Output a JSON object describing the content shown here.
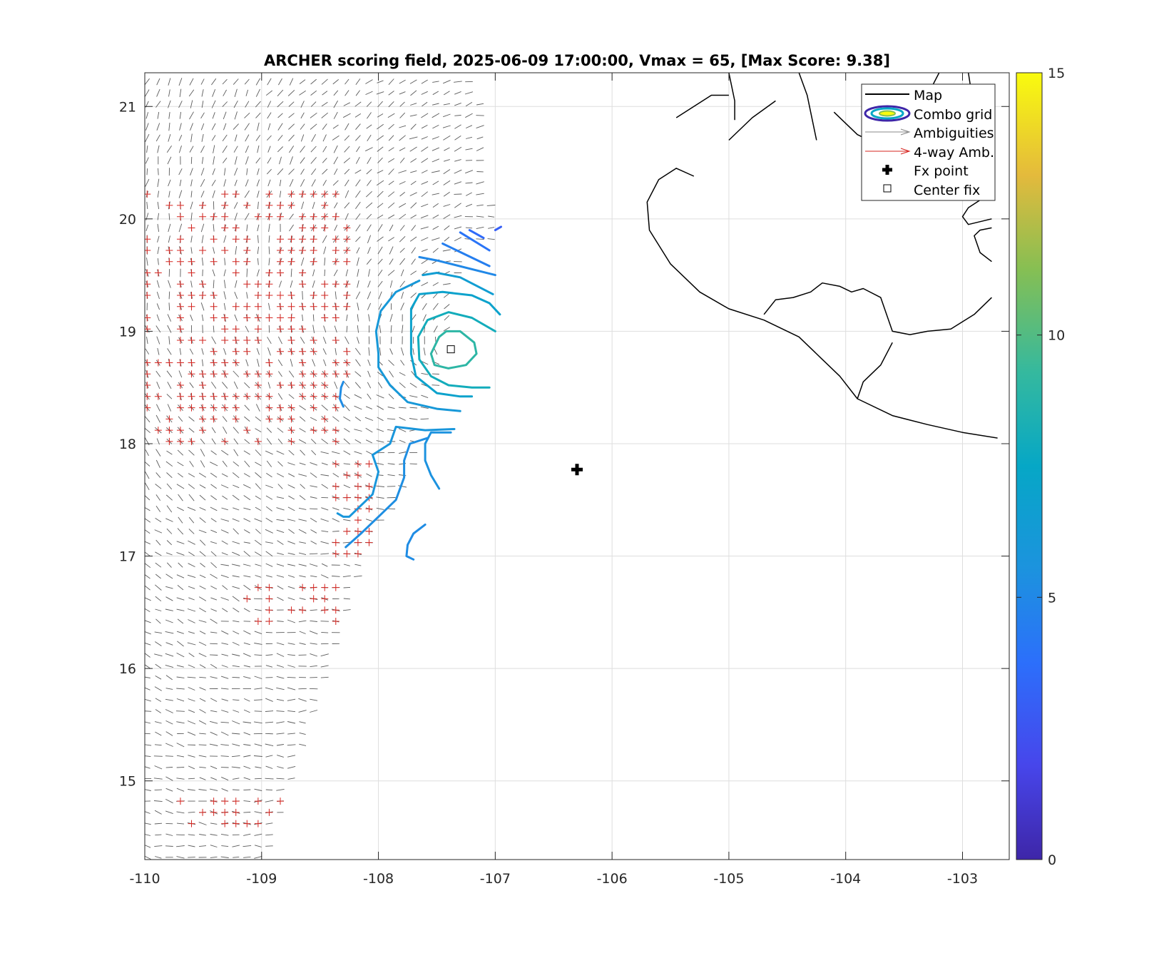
{
  "chart_data": {
    "type": "contour",
    "title": "ARCHER scoring field, 2025-06-09 17:00:00, Vmax = 65, [Max Score: 9.38]",
    "xlabel": "",
    "ylabel": "",
    "xlim": [
      -110,
      -102.6
    ],
    "ylim": [
      14.3,
      21.3
    ],
    "x_ticks": [
      -110,
      -109,
      -108,
      -107,
      -106,
      -105,
      -104,
      -103
    ],
    "x_tick_labels": [
      "-110",
      "-109",
      "-108",
      "-107",
      "-106",
      "-105",
      "-104",
      "-103"
    ],
    "y_ticks": [
      15,
      16,
      17,
      18,
      19,
      20,
      21
    ],
    "y_tick_labels": [
      "15",
      "16",
      "17",
      "18",
      "19",
      "20",
      "21"
    ],
    "grid": true,
    "colorbar": {
      "min": 0,
      "max": 15,
      "ticks": [
        0,
        5,
        10,
        15
      ],
      "tick_labels": [
        "0",
        "5",
        "10",
        "15"
      ],
      "colormap": "parula"
    },
    "legend": {
      "placement": "top-right",
      "entries": [
        "Map",
        "Combo grid",
        "Ambiguities",
        "4-way Amb.",
        "Fx point",
        "Center fix"
      ]
    },
    "points": {
      "fx_point": {
        "lon": -106.3,
        "lat": 17.77
      },
      "center_fix": {
        "lon": -107.38,
        "lat": 18.84
      }
    },
    "contours": [
      {
        "level": 9.0,
        "coords": [
          [
            -107.48,
            18.95
          ],
          [
            -107.42,
            19.0
          ],
          [
            -107.3,
            19.0
          ],
          [
            -107.18,
            18.9
          ],
          [
            -107.16,
            18.8
          ],
          [
            -107.25,
            18.7
          ],
          [
            -107.4,
            18.67
          ],
          [
            -107.52,
            18.7
          ],
          [
            -107.55,
            18.8
          ],
          [
            -107.48,
            18.95
          ]
        ]
      },
      {
        "level": 8.0,
        "coords": [
          [
            -107.0,
            19.0
          ],
          [
            -107.2,
            19.12
          ],
          [
            -107.4,
            19.17
          ],
          [
            -107.58,
            19.1
          ],
          [
            -107.66,
            18.95
          ],
          [
            -107.65,
            18.75
          ],
          [
            -107.55,
            18.6
          ],
          [
            -107.4,
            18.52
          ],
          [
            -107.2,
            18.5
          ],
          [
            -107.05,
            18.5
          ]
        ]
      },
      {
        "level": 7.0,
        "coords": [
          [
            -106.96,
            19.15
          ],
          [
            -107.05,
            19.25
          ],
          [
            -107.2,
            19.32
          ],
          [
            -107.45,
            19.35
          ],
          [
            -107.65,
            19.33
          ],
          [
            -107.72,
            19.2
          ],
          [
            -107.72,
            19.0
          ],
          [
            -107.72,
            18.8
          ],
          [
            -107.68,
            18.6
          ],
          [
            -107.5,
            18.45
          ],
          [
            -107.3,
            18.42
          ],
          [
            -107.2,
            18.42
          ]
        ]
      },
      {
        "level": 6.5,
        "coords": [
          [
            -107.02,
            19.33
          ],
          [
            -107.3,
            19.48
          ],
          [
            -107.5,
            19.52
          ],
          [
            -107.62,
            19.5
          ]
        ]
      },
      {
        "level": 6.0,
        "coords": [
          [
            -107.65,
            19.45
          ],
          [
            -107.85,
            19.35
          ],
          [
            -107.98,
            19.18
          ],
          [
            -108.02,
            19.0
          ],
          [
            -108.0,
            18.8
          ],
          [
            -108.0,
            18.68
          ],
          [
            -107.9,
            18.52
          ],
          [
            -107.75,
            18.37
          ],
          [
            -107.5,
            18.31
          ],
          [
            -107.3,
            18.29
          ]
        ]
      },
      {
        "level": 5.8,
        "coords": [
          [
            -107.35,
            18.13
          ],
          [
            -107.6,
            18.12
          ],
          [
            -107.85,
            18.15
          ],
          [
            -107.9,
            18.0
          ],
          [
            -108.05,
            17.9
          ],
          [
            -108.0,
            17.75
          ],
          [
            -108.05,
            17.55
          ],
          [
            -108.15,
            17.45
          ],
          [
            -108.25,
            17.35
          ],
          [
            -108.3,
            17.35
          ],
          [
            -108.35,
            17.38
          ]
        ]
      },
      {
        "level": 5.5,
        "coords": [
          [
            -107.38,
            18.1
          ],
          [
            -107.55,
            18.1
          ],
          [
            -107.6,
            18.0
          ],
          [
            -107.6,
            17.85
          ],
          [
            -107.55,
            17.72
          ],
          [
            -107.48,
            17.6
          ]
        ]
      },
      {
        "level": 5.3,
        "coords": [
          [
            -107.58,
            18.05
          ],
          [
            -107.73,
            18.0
          ],
          [
            -107.78,
            17.85
          ],
          [
            -107.78,
            17.7
          ],
          [
            -107.85,
            17.5
          ],
          [
            -108.0,
            17.35
          ],
          [
            -108.15,
            17.2
          ],
          [
            -108.28,
            17.08
          ]
        ]
      },
      {
        "level": 5.2,
        "coords": [
          [
            -107.6,
            17.28
          ],
          [
            -107.7,
            17.2
          ],
          [
            -107.75,
            17.1
          ],
          [
            -107.76,
            17.0
          ],
          [
            -107.7,
            16.97
          ]
        ]
      },
      {
        "level": 5.0,
        "coords": [
          [
            -107.0,
            19.5
          ],
          [
            -107.5,
            19.63
          ],
          [
            -107.65,
            19.66
          ]
        ]
      },
      {
        "level": 4.5,
        "coords": [
          [
            -107.05,
            19.58
          ],
          [
            -107.45,
            19.78
          ]
        ]
      },
      {
        "level": 4.0,
        "coords": [
          [
            -107.05,
            19.72
          ],
          [
            -107.3,
            19.88
          ]
        ]
      },
      {
        "level": 3.5,
        "coords": [
          [
            -107.1,
            19.83
          ],
          [
            -107.22,
            19.9
          ]
        ]
      },
      {
        "level": 3.0,
        "coords": [
          [
            -107.0,
            19.9
          ],
          [
            -106.95,
            19.93
          ]
        ]
      },
      {
        "level": 5.2,
        "coords": [
          [
            -108.3,
            18.33
          ],
          [
            -108.33,
            18.4
          ],
          [
            -108.32,
            18.5
          ],
          [
            -108.3,
            18.55
          ]
        ]
      }
    ],
    "coastline": [
      [
        [
          -103.2,
          21.3
        ],
        [
          -103.3,
          21.1
        ],
        [
          -103.45,
          20.95
        ],
        [
          -103.55,
          20.85
        ],
        [
          -103.7,
          20.65
        ],
        [
          -103.9,
          20.75
        ],
        [
          -104.0,
          20.85
        ],
        [
          -104.1,
          20.95
        ]
      ],
      [
        [
          -102.95,
          21.3
        ],
        [
          -102.92,
          21.1
        ],
        [
          -102.8,
          20.85
        ],
        [
          -102.75,
          20.6
        ]
      ],
      [
        [
          -105.0,
          21.3
        ],
        [
          -104.95,
          21.05
        ],
        [
          -104.95,
          20.88
        ]
      ],
      [
        [
          -104.4,
          21.3
        ],
        [
          -104.33,
          21.1
        ],
        [
          -104.3,
          20.95
        ],
        [
          -104.25,
          20.7
        ]
      ],
      [
        [
          -105.0,
          20.7
        ],
        [
          -104.8,
          20.9
        ],
        [
          -104.6,
          21.05
        ]
      ],
      [
        [
          -105.45,
          20.9
        ],
        [
          -105.3,
          21.0
        ],
        [
          -105.15,
          21.1
        ],
        [
          -105.0,
          21.1
        ]
      ],
      [
        [
          -105.3,
          20.38
        ],
        [
          -105.45,
          20.45
        ],
        [
          -105.6,
          20.35
        ],
        [
          -105.7,
          20.15
        ],
        [
          -105.68,
          19.9
        ],
        [
          -105.5,
          19.6
        ],
        [
          -105.25,
          19.35
        ],
        [
          -105.0,
          19.2
        ],
        [
          -104.7,
          19.1
        ],
        [
          -104.4,
          18.95
        ],
        [
          -104.2,
          18.75
        ],
        [
          -104.05,
          18.6
        ],
        [
          -103.9,
          18.4
        ],
        [
          -103.6,
          18.25
        ],
        [
          -103.3,
          18.17
        ],
        [
          -103.0,
          18.1
        ],
        [
          -102.7,
          18.05
        ]
      ],
      [
        [
          -104.7,
          19.15
        ],
        [
          -104.6,
          19.28
        ],
        [
          -104.45,
          19.3
        ],
        [
          -104.3,
          19.35
        ],
        [
          -104.2,
          19.43
        ],
        [
          -104.05,
          19.4
        ],
        [
          -103.95,
          19.35
        ],
        [
          -103.85,
          19.38
        ],
        [
          -103.7,
          19.3
        ],
        [
          -103.65,
          19.15
        ],
        [
          -103.6,
          19.0
        ],
        [
          -103.45,
          18.97
        ],
        [
          -103.3,
          19.0
        ],
        [
          -103.1,
          19.02
        ],
        [
          -102.9,
          19.15
        ],
        [
          -102.75,
          19.3
        ]
      ],
      [
        [
          -103.9,
          18.4
        ],
        [
          -103.85,
          18.55
        ],
        [
          -103.7,
          18.7
        ],
        [
          -103.6,
          18.9
        ]
      ],
      [
        [
          -102.75,
          20.0
        ],
        [
          -102.95,
          19.95
        ],
        [
          -103.0,
          20.02
        ],
        [
          -102.95,
          20.1
        ],
        [
          -102.8,
          20.2
        ]
      ],
      [
        [
          -102.75,
          19.62
        ],
        [
          -102.85,
          19.7
        ],
        [
          -102.9,
          19.85
        ],
        [
          -102.85,
          19.9
        ],
        [
          -102.75,
          19.92
        ]
      ]
    ]
  }
}
